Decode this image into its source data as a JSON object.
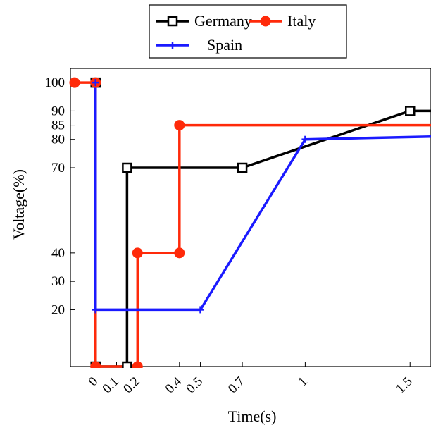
{
  "chart_data": {
    "type": "line",
    "xlabel": "Time(s)",
    "ylabel": "Voltage(%)",
    "x_ticks": [
      "0",
      "0.1",
      "0.2",
      "0.4",
      "0.5",
      "0.7",
      "1",
      "1.5"
    ],
    "x_tick_values": [
      0,
      0.1,
      0.2,
      0.4,
      0.5,
      0.7,
      1,
      1.5
    ],
    "y_ticks": [
      "100",
      "90",
      "85",
      "80",
      "70",
      "40",
      "30",
      "20"
    ],
    "y_tick_values": [
      100,
      90,
      85,
      80,
      70,
      40,
      30,
      20
    ],
    "xlim": [
      -0.12,
      1.6
    ],
    "ylim": [
      0,
      105
    ],
    "legend": "top-center",
    "series": [
      {
        "name": "Germany",
        "color": "#000000",
        "marker": "square",
        "points": [
          [
            0,
            100
          ],
          [
            0,
            0
          ],
          [
            0.15,
            0
          ],
          [
            0.15,
            70
          ],
          [
            0.7,
            70
          ],
          [
            1.5,
            90
          ],
          [
            1.6,
            90
          ]
        ]
      },
      {
        "name": "Italy",
        "color": "#ff2a0a",
        "marker": "circle",
        "points": [
          [
            -0.1,
            100
          ],
          [
            0,
            100
          ],
          [
            0,
            0
          ],
          [
            0.2,
            0
          ],
          [
            0.2,
            40
          ],
          [
            0.4,
            40
          ],
          [
            0.4,
            85
          ],
          [
            1.6,
            85
          ]
        ]
      },
      {
        "name": "Spain",
        "color": "#1a1aff",
        "marker": "plus",
        "points": [
          [
            0,
            100
          ],
          [
            0,
            20
          ],
          [
            0.5,
            20
          ],
          [
            1,
            80
          ],
          [
            1.6,
            81
          ]
        ]
      }
    ]
  }
}
